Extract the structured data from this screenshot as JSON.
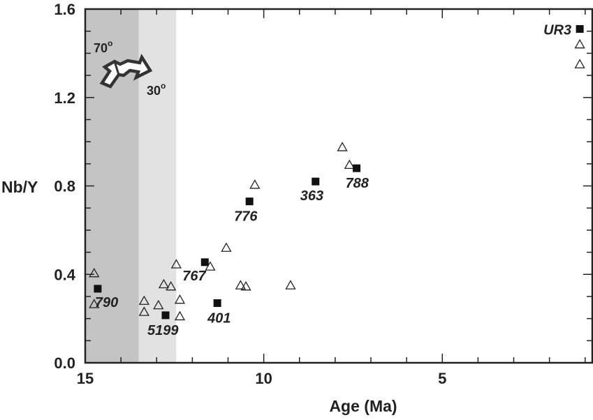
{
  "chart_data": {
    "type": "scatter",
    "title": "",
    "xlabel": "Age (Ma)",
    "ylabel": "Nb/Y",
    "xlim": [
      15,
      0.8
    ],
    "ylim": [
      0,
      1.6
    ],
    "x_reversed": true,
    "x_ticks": [
      15,
      10,
      5
    ],
    "y_ticks": [
      0.0,
      0.4,
      0.8,
      1.2,
      1.6
    ],
    "y_tick_labels": [
      "0.0",
      "0.4",
      "0.8",
      "1.2",
      "1.6"
    ],
    "shaded_bands": [
      {
        "x_from": 15,
        "x_to": 13.5,
        "color": "#c4c4c4"
      },
      {
        "x_from": 13.5,
        "x_to": 12.45,
        "color": "#e2e2e2"
      }
    ],
    "arrow_annotation": {
      "labels": [
        {
          "text": "70",
          "sup": "o"
        },
        {
          "text": "30",
          "sup": "o"
        }
      ]
    },
    "series": [
      {
        "marker": "square-filled",
        "color": "#111111",
        "points": [
          {
            "x": 14.65,
            "y": 0.335,
            "label": "790"
          },
          {
            "x": 12.75,
            "y": 0.215,
            "label": "5199"
          },
          {
            "x": 11.65,
            "y": 0.455,
            "label": "767"
          },
          {
            "x": 11.3,
            "y": 0.27,
            "label": "401"
          },
          {
            "x": 10.4,
            "y": 0.73,
            "label": "776"
          },
          {
            "x": 8.55,
            "y": 0.82,
            "label": "363"
          },
          {
            "x": 7.4,
            "y": 0.88,
            "label": "788"
          },
          {
            "x": 1.15,
            "y": 1.51,
            "label": "UR3"
          }
        ]
      },
      {
        "marker": "triangle-open",
        "color": "#222222",
        "points": [
          {
            "x": 14.75,
            "y": 0.405
          },
          {
            "x": 14.75,
            "y": 0.265
          },
          {
            "x": 13.35,
            "y": 0.28
          },
          {
            "x": 13.35,
            "y": 0.23
          },
          {
            "x": 12.95,
            "y": 0.26
          },
          {
            "x": 12.8,
            "y": 0.355
          },
          {
            "x": 12.6,
            "y": 0.345
          },
          {
            "x": 12.45,
            "y": 0.445
          },
          {
            "x": 12.35,
            "y": 0.285
          },
          {
            "x": 12.35,
            "y": 0.21
          },
          {
            "x": 11.5,
            "y": 0.435
          },
          {
            "x": 11.05,
            "y": 0.52
          },
          {
            "x": 10.65,
            "y": 0.35
          },
          {
            "x": 10.5,
            "y": 0.345
          },
          {
            "x": 10.25,
            "y": 0.805
          },
          {
            "x": 9.25,
            "y": 0.35
          },
          {
            "x": 7.8,
            "y": 0.975
          },
          {
            "x": 7.6,
            "y": 0.895
          },
          {
            "x": 1.15,
            "y": 1.44
          },
          {
            "x": 1.15,
            "y": 1.35
          }
        ]
      }
    ]
  }
}
